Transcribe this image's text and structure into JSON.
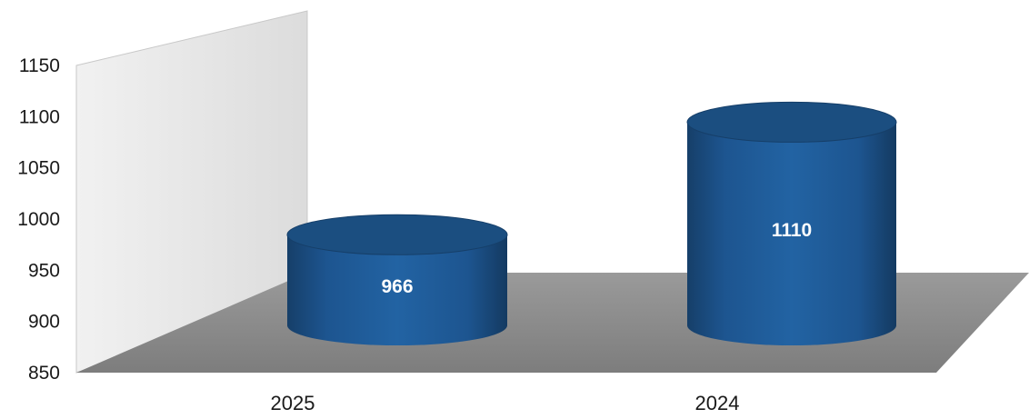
{
  "chart_data": {
    "type": "bar",
    "style": "3d-cylinder",
    "categories": [
      "2025",
      "2024"
    ],
    "values": [
      966,
      1110
    ],
    "data_labels": [
      "966",
      "1110"
    ],
    "y_ticks": [
      "850",
      "900",
      "950",
      "1000",
      "1050",
      "1100",
      "1150"
    ],
    "ylim": [
      850,
      1150
    ],
    "title": "",
    "xlabel": "",
    "ylabel": "",
    "grid": false,
    "legend": "none",
    "colors": {
      "bar": "#1f5a93",
      "bar_dark": "#163f69",
      "bar_top": "#1b4e80",
      "wall": "#e9e9e9",
      "floor": "#8a8a8a"
    }
  }
}
